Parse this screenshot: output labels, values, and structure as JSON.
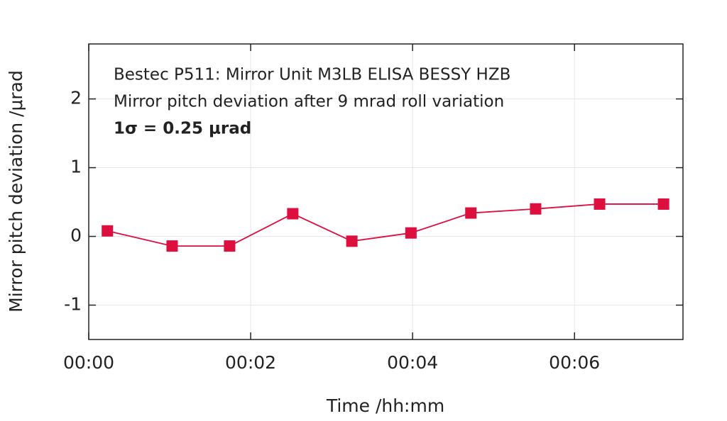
{
  "chart_data": {
    "type": "line",
    "annotations": [
      "Bestec P511: Mirror Unit M3LB ELISA BESSY HZB",
      "Mirror pitch deviation after 9 mrad roll variation",
      "1σ = 0.25 μrad"
    ],
    "x_label": "Time /hh:mm",
    "y_label": "Mirror pitch deviation /μrad",
    "x": [
      0.23,
      1.03,
      1.74,
      2.52,
      3.25,
      3.98,
      4.72,
      5.52,
      6.31,
      7.1
    ],
    "series": [
      {
        "name": "Mirror pitch deviation",
        "color": "#dc0f3f",
        "values": [
          0.08,
          -0.14,
          -0.14,
          0.33,
          -0.07,
          0.05,
          0.34,
          0.4,
          0.47,
          0.47
        ]
      }
    ],
    "xlim": [
      0,
      7.34
    ],
    "xticks": [
      {
        "value": 0,
        "label": "00:00"
      },
      {
        "value": 2,
        "label": "00:02"
      },
      {
        "value": 4,
        "label": "00:04"
      },
      {
        "value": 6,
        "label": "00:06"
      }
    ],
    "ylim": [
      -1.5,
      2.8
    ],
    "yticks": [
      -1,
      0,
      1,
      2
    ],
    "grid": true
  }
}
